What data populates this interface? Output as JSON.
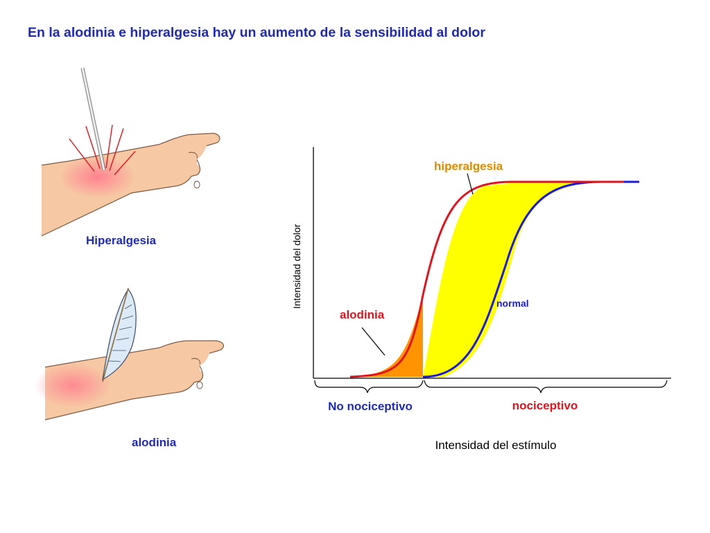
{
  "title": "En la alodinia e hiperalgesia hay un aumento de la sensibilidad al dolor",
  "illustrations": {
    "hyperalgesia_caption": "Hiperalgesia",
    "allodynia_caption": "alodinia"
  },
  "graph": {
    "ylabel": "Intensidad del dolor",
    "xlabel": "Intensidad del estímulo",
    "curve_labels": {
      "hyperalgesia": "hiperalgesia",
      "allodynia": "alodinia",
      "normal": "normal"
    },
    "regions": {
      "non_nociceptive": "No nociceptivo",
      "nociceptive": "nociceptivo"
    }
  },
  "colors": {
    "title": "#1f2bb8",
    "hyperalgesia_curve": "#e0141c",
    "normal_curve": "#1a1ae0",
    "hyperalgesia_fill": "#ffff00",
    "allodynia_fill": "#ff9400",
    "label_orange": "#e08a00",
    "label_red": "#e0141c",
    "skin": "#f7c8a4",
    "skin_edge": "#7a5a45"
  }
}
